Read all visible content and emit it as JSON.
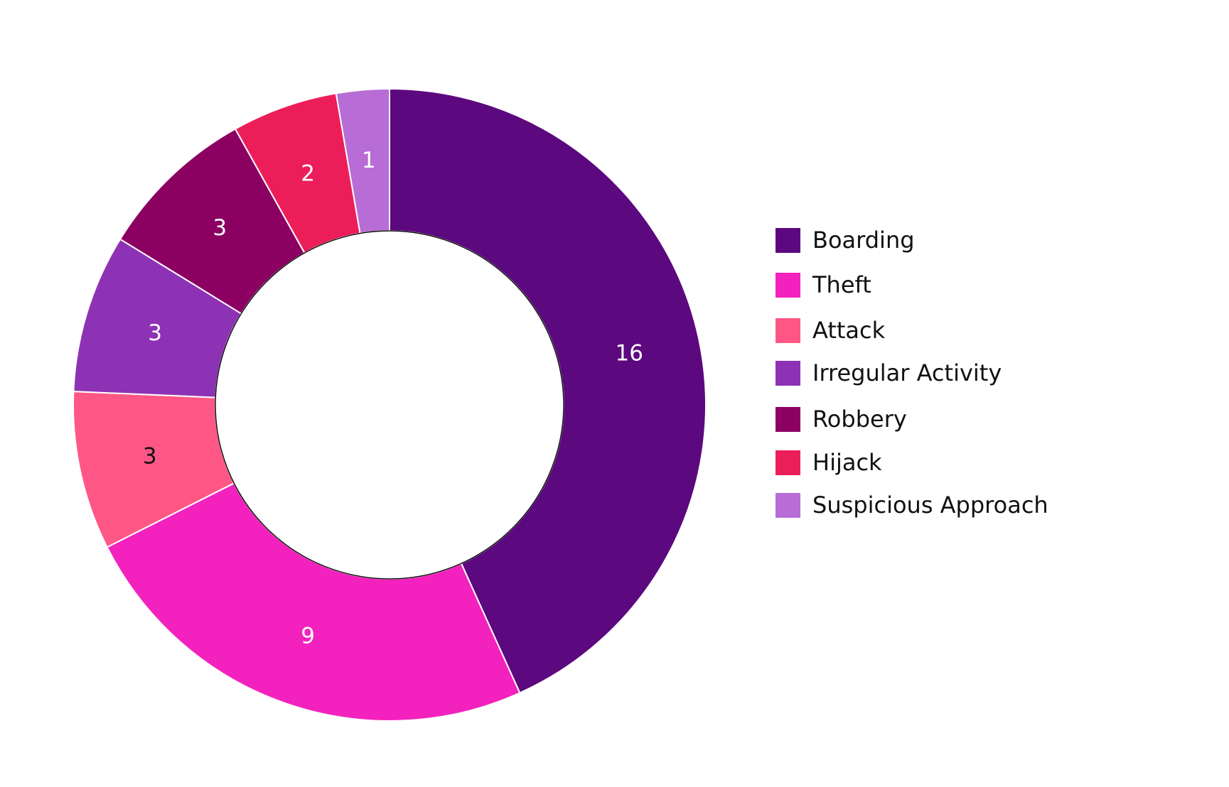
{
  "chart_data": {
    "type": "pie",
    "variant": "donut",
    "title": "",
    "categories": [
      "Boarding",
      "Theft",
      "Attack",
      "Irregular Activity",
      "Robbery",
      "Hijack",
      "Suspicious Approach"
    ],
    "values": [
      16,
      9,
      3,
      3,
      3,
      2,
      1
    ],
    "colors": [
      "#5C087F",
      "#F322BE",
      "#FF5785",
      "#8E32B5",
      "#8C0062",
      "#EC1E5A",
      "#B76DD5"
    ],
    "label_colors": [
      "#FFFFFF",
      "#FFFFFF",
      "#111111",
      "#FFFFFF",
      "#FFFFFF",
      "#FFFFFF",
      "#FFFFFF"
    ],
    "legend_position": "right",
    "show_data_labels": true
  }
}
